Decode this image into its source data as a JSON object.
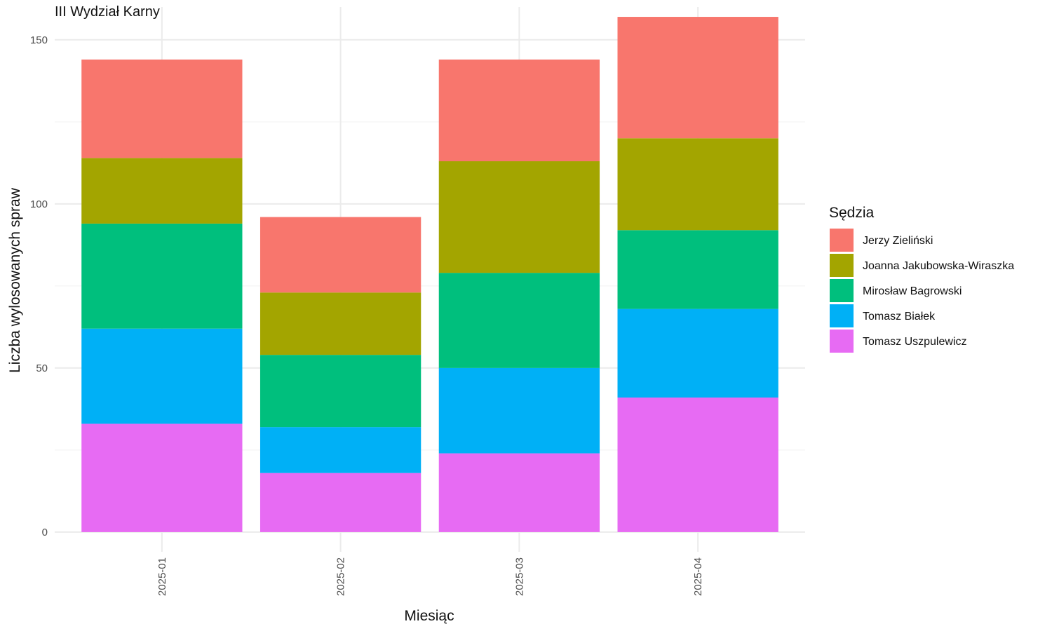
{
  "chart_data": {
    "type": "bar",
    "stacked": true,
    "title": "III Wydział Karny",
    "xlabel": "Miesiąc",
    "ylabel": "Liczba wylosowanych spraw",
    "categories": [
      "2025-01",
      "2025-02",
      "2025-03",
      "2025-04"
    ],
    "yticks": [
      0,
      50,
      100,
      150
    ],
    "ylim": [
      -6,
      160
    ],
    "legend_title": "Sędzia",
    "legend_position": "right",
    "grid": true,
    "series": [
      {
        "name": "Tomasz Uszpulewicz",
        "color": "#E76BF3",
        "values": [
          33,
          18,
          24,
          41
        ]
      },
      {
        "name": "Tomasz Białek",
        "color": "#00B0F6",
        "values": [
          29,
          14,
          26,
          27
        ]
      },
      {
        "name": "Mirosław Bagrowski",
        "color": "#00BF7D",
        "values": [
          32,
          22,
          29,
          24
        ]
      },
      {
        "name": "Joanna Jakubowska-Wiraszka",
        "color": "#A3A500",
        "values": [
          20,
          19,
          34,
          28
        ]
      },
      {
        "name": "Jerzy Zieliński",
        "color": "#F8766D",
        "values": [
          30,
          23,
          31,
          37
        ]
      }
    ],
    "legend_order": [
      "Jerzy Zieliński",
      "Joanna Jakubowska-Wiraszka",
      "Mirosław Bagrowski",
      "Tomasz Białek",
      "Tomasz Uszpulewicz"
    ]
  }
}
